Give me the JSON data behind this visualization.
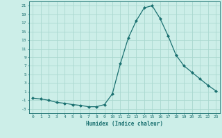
{
  "x": [
    0,
    1,
    2,
    3,
    4,
    5,
    6,
    7,
    8,
    9,
    10,
    11,
    12,
    13,
    14,
    15,
    16,
    17,
    18,
    19,
    20,
    21,
    22,
    23
  ],
  "y": [
    -0.5,
    -0.7,
    -1.0,
    -1.5,
    -1.7,
    -2.0,
    -2.2,
    -2.5,
    -2.5,
    -2.0,
    0.5,
    7.5,
    13.5,
    17.5,
    20.5,
    21.0,
    18.0,
    14.0,
    9.5,
    7.0,
    5.5,
    4.0,
    2.5,
    1.2
  ],
  "xlabel": "Humidex (Indice chaleur)",
  "yticks": [
    -3,
    -1,
    1,
    3,
    5,
    7,
    9,
    11,
    13,
    15,
    17,
    19,
    21
  ],
  "xticks": [
    0,
    1,
    2,
    3,
    4,
    5,
    6,
    7,
    8,
    9,
    10,
    11,
    12,
    13,
    14,
    15,
    16,
    17,
    18,
    19,
    20,
    21,
    22,
    23
  ],
  "ylim": [
    -4,
    22
  ],
  "xlim": [
    -0.5,
    23.5
  ],
  "line_color": "#1a7070",
  "marker_color": "#1a7070",
  "bg_color": "#cceee8",
  "grid_color": "#aad8d0",
  "title": ""
}
